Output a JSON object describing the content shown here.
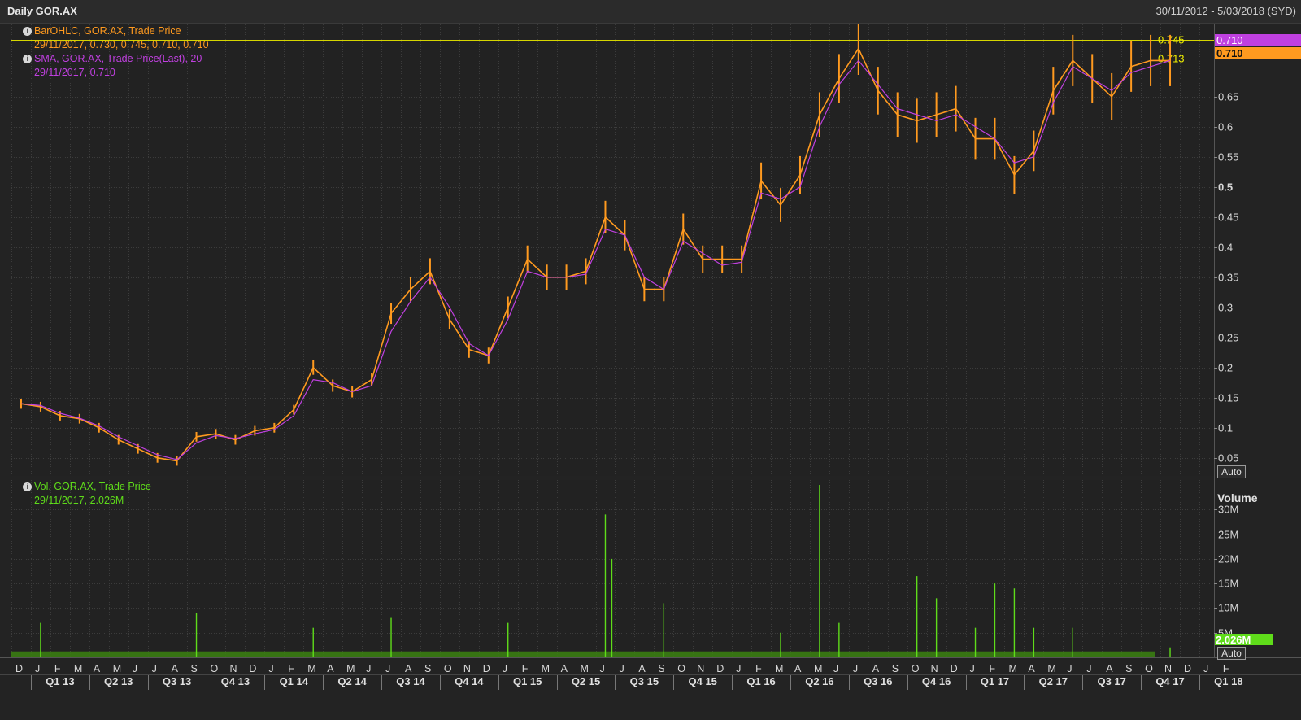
{
  "window": {
    "title": "Daily GOR.AX",
    "date_range": "30/11/2012 - 5/03/2018 (SYD)"
  },
  "colors": {
    "price": "#ff9a1f",
    "sma": "#c040e0",
    "volume": "#5fdc1a",
    "grid": "#3c3c3c",
    "hline": "#d6d600",
    "background": "#232323"
  },
  "legend": {
    "price_title": "BarOHLC, GOR.AX, Trade Price",
    "price_values": "29/11/2017, 0.730, 0.745, 0.710, 0.710",
    "sma_title": "SMA, GOR.AX, Trade Price(Last),  20",
    "sma_values": "29/11/2017, 0.710",
    "vol_title": "Vol, GOR.AX, Trade Price",
    "vol_values": "29/11/2017, 2.026M"
  },
  "buttons": {
    "auto_price": "Auto",
    "auto_volume": "Auto"
  },
  "chart_data": [
    {
      "type": "line",
      "panel": "price",
      "series": [
        {
          "name": "BarOHLC, GOR.AX, Trade Price",
          "style": "ohlc",
          "dates": [
            "2012-12",
            "2013-01",
            "2013-02",
            "2013-03",
            "2013-04",
            "2013-05",
            "2013-06",
            "2013-07",
            "2013-08",
            "2013-09",
            "2013-10",
            "2013-11",
            "2013-12",
            "2014-01",
            "2014-02",
            "2014-03",
            "2014-04",
            "2014-05",
            "2014-06",
            "2014-07",
            "2014-08",
            "2014-09",
            "2014-10",
            "2014-11",
            "2014-12",
            "2015-01",
            "2015-02",
            "2015-03",
            "2015-04",
            "2015-05",
            "2015-06",
            "2015-07",
            "2015-08",
            "2015-09",
            "2015-10",
            "2015-11",
            "2015-12",
            "2016-01",
            "2016-02",
            "2016-03",
            "2016-04",
            "2016-05",
            "2016-06",
            "2016-07",
            "2016-08",
            "2016-09",
            "2016-10",
            "2016-11",
            "2016-12",
            "2017-01",
            "2017-02",
            "2017-03",
            "2017-04",
            "2017-05",
            "2017-06",
            "2017-07",
            "2017-08",
            "2017-09",
            "2017-10",
            "2017-11"
          ],
          "values": [
            0.14,
            0.135,
            0.12,
            0.115,
            0.1,
            0.08,
            0.065,
            0.05,
            0.045,
            0.085,
            0.09,
            0.08,
            0.095,
            0.1,
            0.13,
            0.2,
            0.17,
            0.16,
            0.18,
            0.29,
            0.33,
            0.36,
            0.28,
            0.23,
            0.22,
            0.3,
            0.38,
            0.35,
            0.35,
            0.36,
            0.45,
            0.42,
            0.33,
            0.33,
            0.43,
            0.38,
            0.38,
            0.38,
            0.51,
            0.47,
            0.52,
            0.62,
            0.68,
            0.73,
            0.66,
            0.62,
            0.61,
            0.62,
            0.63,
            0.58,
            0.58,
            0.52,
            0.56,
            0.66,
            0.71,
            0.68,
            0.65,
            0.7,
            0.71,
            0.71
          ]
        },
        {
          "name": "SMA, GOR.AX, Trade Price(Last),  20",
          "style": "line",
          "dates": [
            "2012-12",
            "2013-01",
            "2013-02",
            "2013-03",
            "2013-04",
            "2013-05",
            "2013-06",
            "2013-07",
            "2013-08",
            "2013-09",
            "2013-10",
            "2013-11",
            "2013-12",
            "2014-01",
            "2014-02",
            "2014-03",
            "2014-04",
            "2014-05",
            "2014-06",
            "2014-07",
            "2014-08",
            "2014-09",
            "2014-10",
            "2014-11",
            "2014-12",
            "2015-01",
            "2015-02",
            "2015-03",
            "2015-04",
            "2015-05",
            "2015-06",
            "2015-07",
            "2015-08",
            "2015-09",
            "2015-10",
            "2015-11",
            "2015-12",
            "2016-01",
            "2016-02",
            "2016-03",
            "2016-04",
            "2016-05",
            "2016-06",
            "2016-07",
            "2016-08",
            "2016-09",
            "2016-10",
            "2016-11",
            "2016-12",
            "2017-01",
            "2017-02",
            "2017-03",
            "2017-04",
            "2017-05",
            "2017-06",
            "2017-07",
            "2017-08",
            "2017-09",
            "2017-10",
            "2017-11"
          ],
          "values": [
            0.14,
            0.137,
            0.124,
            0.116,
            0.103,
            0.085,
            0.07,
            0.055,
            0.047,
            0.075,
            0.087,
            0.082,
            0.09,
            0.097,
            0.12,
            0.18,
            0.175,
            0.16,
            0.17,
            0.26,
            0.31,
            0.35,
            0.3,
            0.24,
            0.22,
            0.28,
            0.36,
            0.35,
            0.35,
            0.355,
            0.43,
            0.42,
            0.35,
            0.33,
            0.41,
            0.39,
            0.37,
            0.375,
            0.49,
            0.48,
            0.5,
            0.6,
            0.67,
            0.71,
            0.67,
            0.63,
            0.62,
            0.61,
            0.62,
            0.6,
            0.58,
            0.54,
            0.55,
            0.64,
            0.7,
            0.68,
            0.66,
            0.69,
            0.7,
            0.71
          ]
        }
      ],
      "y_ticks": [
        "0.05",
        "0.1",
        "0.15",
        "0.2",
        "0.25",
        "0.3",
        "0.35",
        "0.4",
        "0.45",
        "0.5",
        "0.55",
        "0.6",
        "0.65"
      ],
      "ylim": [
        0.02,
        0.77
      ],
      "hlines": [
        {
          "label": "0.745",
          "value": 0.745
        },
        {
          "label": "0.713",
          "value": 0.713
        }
      ],
      "last_labels": [
        {
          "label": "0.710",
          "color": "#c040e0"
        },
        {
          "label": "0.710",
          "color": "#ff9a1f"
        }
      ],
      "grid": true
    },
    {
      "type": "bar",
      "panel": "volume",
      "series": [
        {
          "name": "Vol, GOR.AX, Trade Price",
          "dates": [
            "2013-01",
            "2013-09",
            "2014-03",
            "2014-07",
            "2015-01",
            "2015-06",
            "2015-06",
            "2015-09",
            "2016-03",
            "2016-05",
            "2016-06",
            "2016-10",
            "2016-11",
            "2017-01",
            "2017-02",
            "2017-03",
            "2017-04",
            "2017-06",
            "2017-11"
          ],
          "values": [
            7,
            9,
            6,
            8,
            7,
            29,
            20,
            11,
            5,
            35,
            7,
            16.5,
            12,
            6,
            15,
            14,
            6,
            6,
            2.026
          ]
        }
      ],
      "axis_label": "Volume",
      "y_ticks": [
        "5M",
        "10M",
        "15M",
        "20M",
        "25M",
        "30M"
      ],
      "ylim": [
        0,
        36
      ],
      "last_label": "2.026M",
      "grid": true
    }
  ],
  "x_axis": {
    "months": [
      "D",
      "J",
      "F",
      "M",
      "A",
      "M",
      "J",
      "J",
      "A",
      "S",
      "O",
      "N",
      "D",
      "J",
      "F",
      "M",
      "A",
      "M",
      "J",
      "J",
      "A",
      "S",
      "O",
      "N",
      "D",
      "J",
      "F",
      "M",
      "A",
      "M",
      "J",
      "J",
      "A",
      "S",
      "O",
      "N",
      "D",
      "J",
      "F",
      "M",
      "A",
      "M",
      "J",
      "J",
      "A",
      "S",
      "O",
      "N",
      "D",
      "J",
      "F",
      "M",
      "A",
      "M",
      "J",
      "J",
      "A",
      "S",
      "O",
      "N",
      "D",
      "J",
      "F"
    ],
    "quarters": [
      "Q1 13",
      "Q2 13",
      "Q3 13",
      "Q4 13",
      "Q1 14",
      "Q2 14",
      "Q3 14",
      "Q4 14",
      "Q1 15",
      "Q2 15",
      "Q3 15",
      "Q4 15",
      "Q1 16",
      "Q2 16",
      "Q3 16",
      "Q4 16",
      "Q1 17",
      "Q2 17",
      "Q3 17",
      "Q4 17",
      "Q1 18"
    ]
  }
}
